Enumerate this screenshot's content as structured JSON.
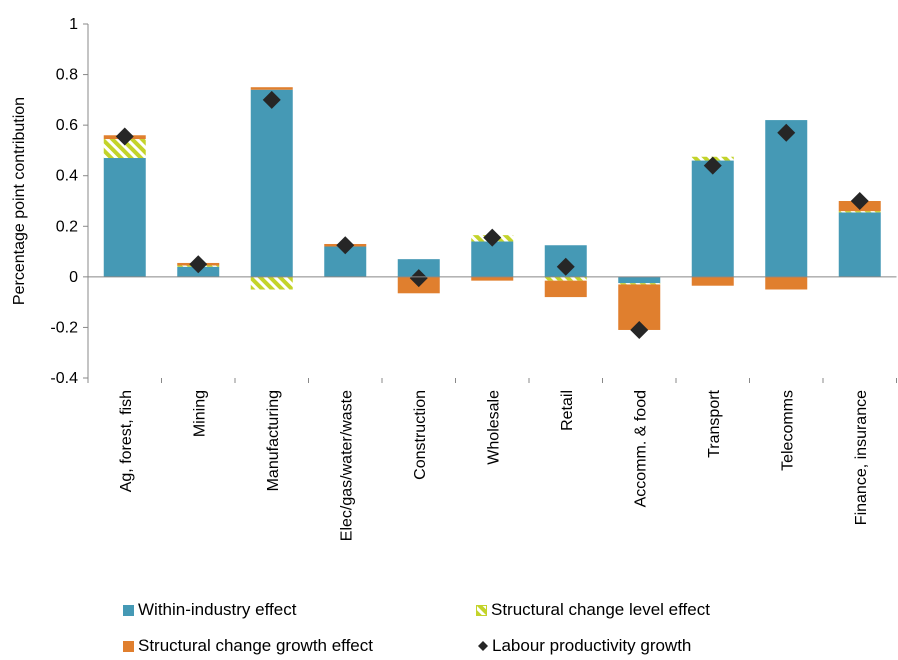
{
  "chart_data": {
    "type": "bar",
    "stacked": true,
    "title": "",
    "xlabel": "",
    "ylabel": "Percentage point contribution",
    "ylim": [
      -0.4,
      1
    ],
    "yticks": [
      "-0.4",
      "-0.2",
      "0",
      "0.2",
      "0.4",
      "0.6",
      "0.8",
      "1"
    ],
    "grid": false,
    "legend_position": "bottom",
    "categories": [
      "Ag, forest, fish",
      "Mining",
      "Manufacturing",
      "Elec/gas/water/waste",
      "Construction",
      "Wholesale",
      "Retail",
      "Accomm. & food",
      "Transport",
      "Telecomms",
      "Finance, insurance"
    ],
    "series": [
      {
        "name": "Within-industry effect",
        "kind": "bar",
        "color": "#4599b5",
        "values": [
          0.47,
          0.04,
          0.74,
          0.12,
          0.07,
          0.14,
          0.125,
          -0.025,
          0.46,
          0.62,
          0.255
        ]
      },
      {
        "name": "Structural change level effect",
        "kind": "bar",
        "pattern": "hatched",
        "color": "#c3d32a",
        "values": [
          0.075,
          0.005,
          -0.05,
          0.0,
          0.0,
          0.025,
          -0.015,
          -0.005,
          0.015,
          0.0,
          0.005
        ]
      },
      {
        "name": "Structural change growth effect",
        "kind": "bar",
        "color": "#e07f2e",
        "values": [
          0.015,
          0.01,
          0.01,
          0.01,
          -0.065,
          -0.015,
          -0.065,
          -0.18,
          -0.035,
          -0.05,
          0.04
        ]
      },
      {
        "name": "Labour productivity growth",
        "kind": "marker",
        "marker": "diamond",
        "color": "#262626",
        "values": [
          0.555,
          0.05,
          0.7,
          0.125,
          -0.005,
          0.155,
          0.04,
          -0.21,
          0.44,
          0.57,
          0.3
        ]
      }
    ]
  }
}
